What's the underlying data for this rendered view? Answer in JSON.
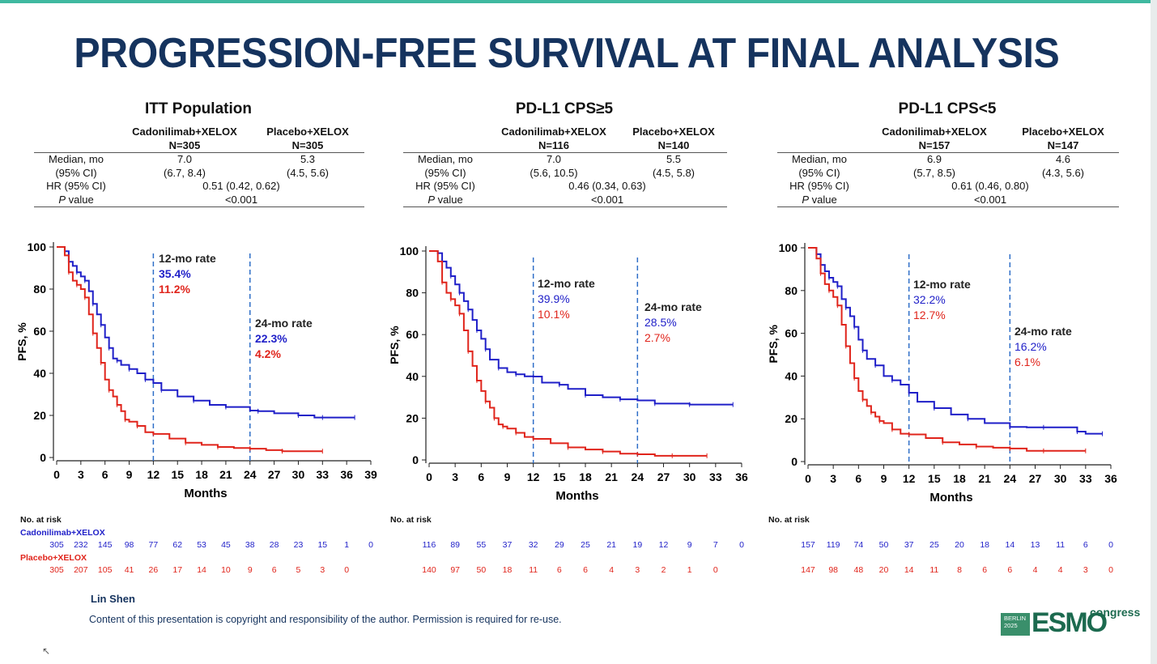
{
  "slide": {
    "title": "PROGRESSION-FREE SURVIVAL AT FINAL ANALYSIS",
    "author": "Lin Shen",
    "copyright": "Content of this presentation is copyright and responsibility of the author. Permission is required for re-use.",
    "logo": {
      "city": "BERLIN 2025",
      "brand": "ESMO",
      "suffix": "congress"
    }
  },
  "colors": {
    "arm1": "#1f1fc8",
    "arm2": "#e0241b",
    "title": "#15335e",
    "ref_line": "#2f6fc8"
  },
  "panels": [
    {
      "title": "ITT Population",
      "table": {
        "arm1_header": "Cadonilimab+XELOX",
        "arm1_n": "N=305",
        "arm2_header": "Placebo+XELOX",
        "arm2_n": "N=305",
        "median_label": "Median, mo",
        "ci_label": "(95% CI)",
        "arm1_median": "7.0",
        "arm1_ci": "(6.7, 8.4)",
        "arm2_median": "5.3",
        "arm2_ci": "(4.5, 5.6)",
        "hr_label": "HR (95% CI)",
        "hr_value": "0.51 (0.42, 0.62)",
        "p_label": "P",
        "p_label_rest": " value",
        "p_value": "<0.001"
      },
      "annotations": {
        "m12": {
          "title": "12-mo rate",
          "arm1": "35.4%",
          "arm2": "11.2%"
        },
        "m24": {
          "title": "24-mo rate",
          "arm1": "22.3%",
          "arm2": "4.2%"
        }
      },
      "risk": {
        "header": "No. at risk",
        "arm1_label": "Cadonilimab+XELOX",
        "arm2_label": "Placebo+XELOX",
        "arm1": [
          "305",
          "232",
          "145",
          "98",
          "77",
          "62",
          "53",
          "45",
          "38",
          "28",
          "23",
          "15",
          "1",
          "0"
        ],
        "arm2": [
          "305",
          "207",
          "105",
          "41",
          "26",
          "17",
          "14",
          "10",
          "9",
          "6",
          "5",
          "3",
          "0"
        ]
      }
    },
    {
      "title": "PD-L1 CPS≥5",
      "table": {
        "arm1_header": "Cadonilimab+XELOX",
        "arm1_n": "N=116",
        "arm2_header": "Placebo+XELOX",
        "arm2_n": "N=140",
        "median_label": "Median, mo",
        "ci_label": "(95% CI)",
        "arm1_median": "7.0",
        "arm1_ci": "(5.6, 10.5)",
        "arm2_median": "5.5",
        "arm2_ci": "(4.5, 5.8)",
        "hr_label": "HR (95% CI)",
        "hr_value": "0.46 (0.34, 0.63)",
        "p_label": "P",
        "p_label_rest": " value",
        "p_value": "<0.001"
      },
      "annotations": {
        "m12": {
          "title": "12-mo rate",
          "arm1": "39.9%",
          "arm2": "10.1%"
        },
        "m24": {
          "title": "24-mo rate",
          "arm1": "28.5%",
          "arm2": "2.7%"
        }
      },
      "risk": {
        "header": "No. at risk",
        "arm1_label": "",
        "arm2_label": "",
        "arm1": [
          "116",
          "89",
          "55",
          "37",
          "32",
          "29",
          "25",
          "21",
          "19",
          "12",
          "9",
          "7",
          "0"
        ],
        "arm2": [
          "140",
          "97",
          "50",
          "18",
          "11",
          "6",
          "6",
          "4",
          "3",
          "2",
          "1",
          "0"
        ]
      }
    },
    {
      "title": "PD-L1 CPS<5",
      "table": {
        "arm1_header": "Cadonilimab+XELOX",
        "arm1_n": "N=157",
        "arm2_header": "Placebo+XELOX",
        "arm2_n": "N=147",
        "median_label": "Median, mo",
        "ci_label": "(95% CI)",
        "arm1_median": "6.9",
        "arm1_ci": "(5.7, 8.5)",
        "arm2_median": "4.6",
        "arm2_ci": "(4.3, 5.6)",
        "hr_label": "HR (95% CI)",
        "hr_value": "0.61 (0.46, 0.80)",
        "p_label": "P",
        "p_label_rest": " value",
        "p_value": "<0.001"
      },
      "annotations": {
        "m12": {
          "title": "12-mo rate",
          "arm1": "32.2%",
          "arm2": "12.7%"
        },
        "m24": {
          "title": "24-mo rate",
          "arm1": "16.2%",
          "arm2": "6.1%"
        }
      },
      "risk": {
        "header": "No. at risk",
        "arm1_label": "",
        "arm2_label": "",
        "arm1": [
          "157",
          "119",
          "74",
          "50",
          "37",
          "25",
          "20",
          "18",
          "14",
          "13",
          "11",
          "6",
          "0"
        ],
        "arm2": [
          "147",
          "98",
          "48",
          "20",
          "14",
          "11",
          "8",
          "6",
          "6",
          "4",
          "4",
          "3",
          "0"
        ]
      }
    }
  ],
  "chart_data": [
    {
      "type": "line",
      "step": true,
      "title": "ITT Population",
      "xlabel": "Months",
      "ylabel": "PFS, %",
      "xlim": [
        0,
        39
      ],
      "ylim": [
        0,
        100
      ],
      "xticks": [
        0,
        3,
        6,
        9,
        12,
        15,
        18,
        21,
        24,
        27,
        30,
        33,
        36,
        39
      ],
      "yticks": [
        0,
        20,
        40,
        60,
        80,
        100
      ],
      "reference_lines_x": [
        12,
        24
      ],
      "series": [
        {
          "name": "Cadonilimab+XELOX",
          "x": [
            0,
            1,
            1.5,
            2,
            2.5,
            3,
            3.5,
            4,
            4.5,
            5,
            5.5,
            6,
            6.5,
            7,
            7.5,
            8,
            9,
            10,
            11,
            12,
            13,
            15,
            17,
            19,
            21,
            24,
            25,
            27,
            30,
            32,
            33,
            35,
            37
          ],
          "y": [
            100,
            98,
            93,
            91,
            88,
            86,
            84,
            79,
            73,
            68,
            63,
            57,
            52,
            47,
            46,
            44,
            42,
            40,
            37,
            35.4,
            32,
            29,
            27,
            25,
            24,
            22.3,
            22,
            21,
            20,
            19,
            19,
            19,
            19
          ]
        },
        {
          "name": "Placebo+XELOX",
          "x": [
            0,
            1,
            1.5,
            2,
            2.5,
            3,
            3.5,
            4,
            4.5,
            5,
            5.5,
            6,
            6.5,
            7,
            7.5,
            8,
            8.5,
            9,
            10,
            11,
            12,
            14,
            16,
            18,
            20,
            22,
            24,
            26,
            28,
            30,
            33
          ],
          "y": [
            100,
            96,
            88,
            84,
            82,
            80,
            76,
            68,
            59,
            52,
            45,
            37,
            32,
            29,
            25,
            22,
            18,
            17,
            15,
            12,
            11.2,
            9,
            7,
            6,
            5,
            4.5,
            4.2,
            3.5,
            3,
            3,
            3
          ]
        }
      ]
    },
    {
      "type": "line",
      "step": true,
      "title": "PD-L1 CPS≥5",
      "xlabel": "Months",
      "ylabel": "PFS, %",
      "xlim": [
        0,
        36
      ],
      "ylim": [
        0,
        100
      ],
      "xticks": [
        0,
        3,
        6,
        9,
        12,
        15,
        18,
        21,
        24,
        27,
        30,
        33,
        36
      ],
      "yticks": [
        0,
        20,
        40,
        60,
        80,
        100
      ],
      "reference_lines_x": [
        12,
        24
      ],
      "series": [
        {
          "name": "Cadonilimab+XELOX",
          "x": [
            0,
            1,
            1.5,
            2,
            2.5,
            3,
            3.5,
            4,
            4.5,
            5,
            5.5,
            6,
            6.5,
            7,
            8,
            9,
            10,
            11,
            12,
            13,
            15,
            16,
            18,
            20,
            22,
            24,
            26,
            28,
            30,
            33,
            35
          ],
          "y": [
            100,
            99,
            95,
            92,
            88,
            84,
            80,
            76,
            72,
            67,
            62,
            58,
            53,
            48,
            44,
            42,
            41,
            40,
            39.9,
            37,
            36,
            34,
            31,
            30,
            29,
            28.5,
            27,
            27,
            26.5,
            26.5,
            26.5
          ]
        },
        {
          "name": "Placebo+XELOX",
          "x": [
            0,
            1,
            1.5,
            2,
            2.5,
            3,
            3.5,
            4,
            4.5,
            5,
            5.5,
            6,
            6.5,
            7,
            7.5,
            8,
            8.5,
            9,
            10,
            11,
            12,
            14,
            16,
            18,
            20,
            22,
            24,
            26,
            28,
            30,
            32
          ],
          "y": [
            100,
            95,
            85,
            80,
            77,
            74,
            70,
            62,
            52,
            45,
            38,
            33,
            28,
            25,
            20,
            17,
            16,
            15,
            13,
            11,
            10.1,
            8,
            6,
            5,
            4,
            3,
            2.7,
            2,
            2,
            2,
            2
          ]
        }
      ]
    },
    {
      "type": "line",
      "step": true,
      "title": "PD-L1 CPS<5",
      "xlabel": "Months",
      "ylabel": "PFS, %",
      "xlim": [
        0,
        36
      ],
      "ylim": [
        0,
        100
      ],
      "xticks": [
        0,
        3,
        6,
        9,
        12,
        15,
        18,
        21,
        24,
        27,
        30,
        33,
        36
      ],
      "yticks": [
        0,
        20,
        40,
        60,
        80,
        100
      ],
      "reference_lines_x": [
        12,
        24
      ],
      "series": [
        {
          "name": "Cadonilimab+XELOX",
          "x": [
            0,
            1,
            1.5,
            2,
            2.5,
            3,
            3.5,
            4,
            4.5,
            5,
            5.5,
            6,
            6.5,
            7,
            8,
            9,
            10,
            11,
            12,
            13,
            15,
            17,
            19,
            21,
            24,
            26,
            28,
            31,
            32,
            33,
            35
          ],
          "y": [
            100,
            97,
            92,
            89,
            86,
            84,
            82,
            76,
            72,
            68,
            63,
            57,
            52,
            48,
            45,
            40,
            38,
            36,
            32.2,
            28,
            25,
            22,
            20,
            18,
            16.2,
            16,
            16,
            16,
            14,
            13,
            13
          ]
        },
        {
          "name": "Placebo+XELOX",
          "x": [
            0,
            1,
            1.5,
            2,
            2.5,
            3,
            3.5,
            4,
            4.5,
            5,
            5.5,
            6,
            6.5,
            7,
            7.5,
            8,
            8.5,
            9,
            10,
            11,
            12,
            14,
            16,
            18,
            20,
            22,
            24,
            26,
            28,
            30,
            33
          ],
          "y": [
            100,
            95,
            88,
            83,
            80,
            77,
            73,
            64,
            54,
            46,
            39,
            33,
            29,
            26,
            23,
            21,
            19,
            18,
            15,
            13,
            12.7,
            11,
            9,
            8,
            7,
            6.5,
            6.1,
            5,
            5,
            5,
            5
          ]
        }
      ]
    }
  ]
}
